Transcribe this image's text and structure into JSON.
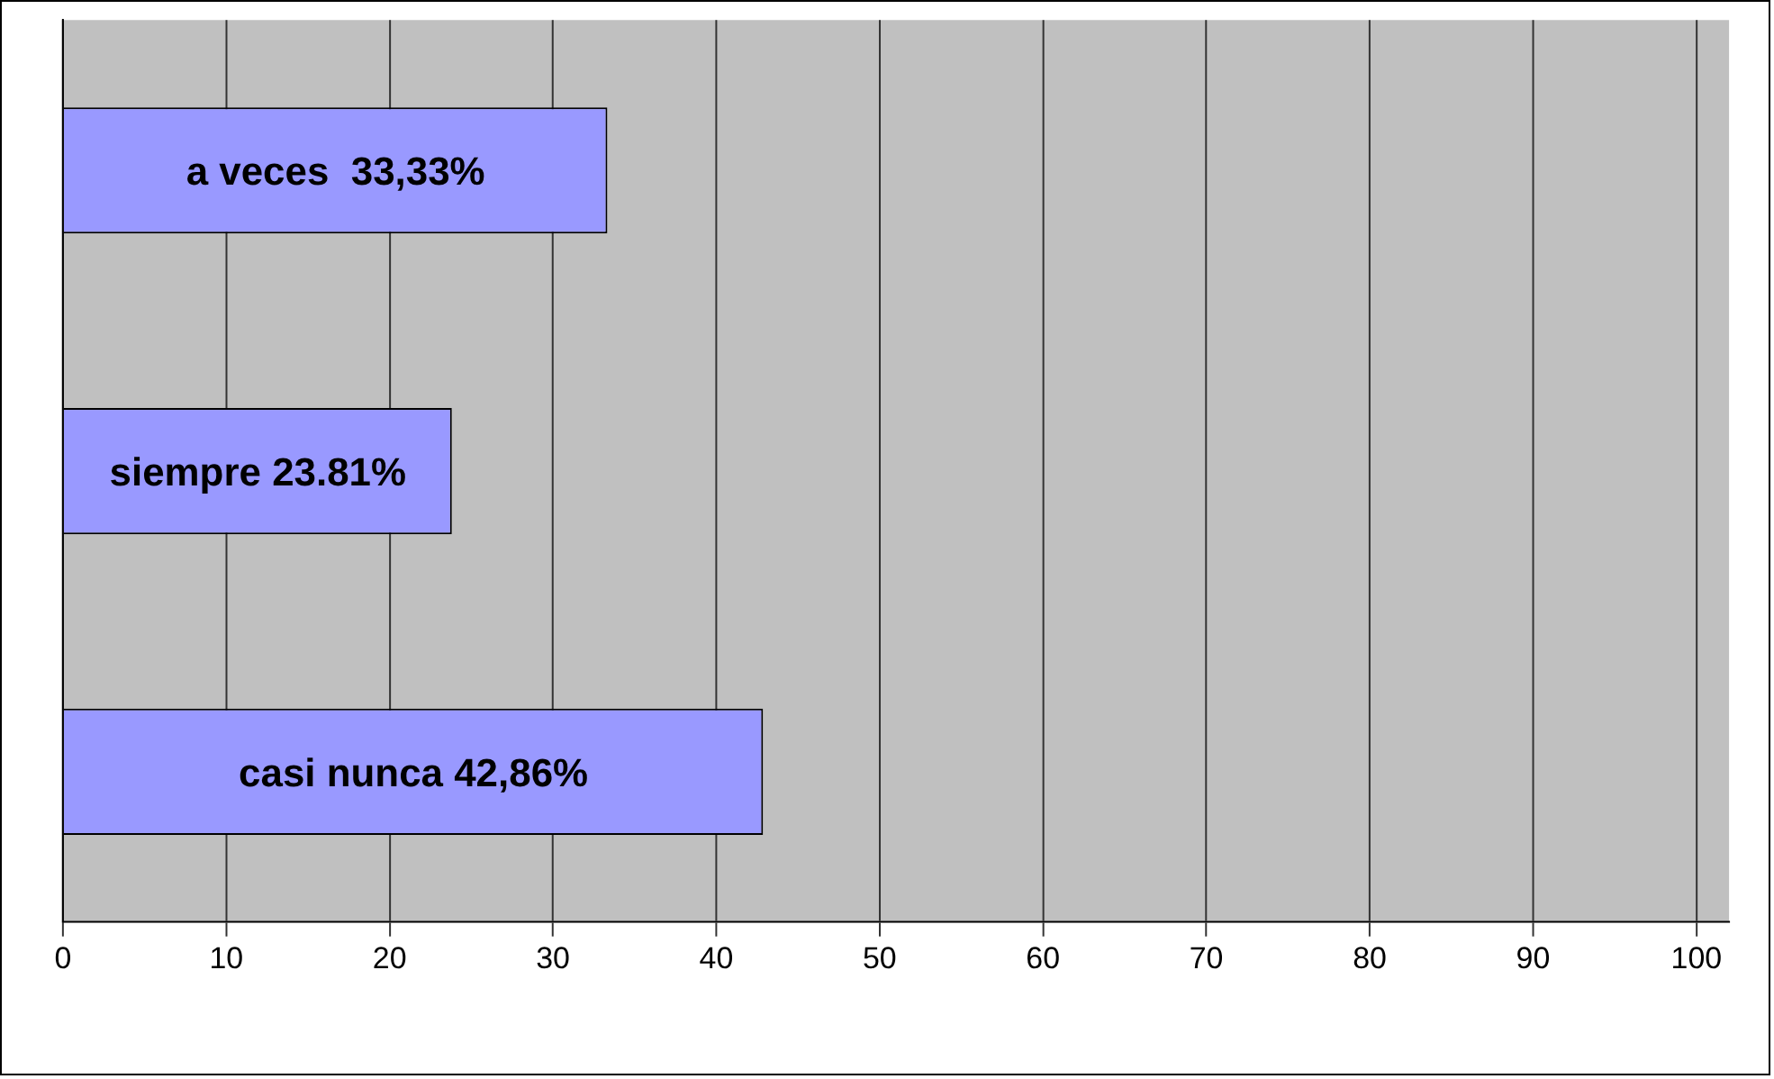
{
  "chart_data": {
    "type": "bar",
    "orientation": "horizontal",
    "categories": [
      null,
      null,
      null
    ],
    "series": [
      {
        "color": "#9999ff",
        "values": [
          33.33,
          23.81,
          42.86
        ],
        "value_labels": [
          "a veces  33,33%",
          "siempre 23.81%",
          "casi nunca 42,86%"
        ]
      }
    ],
    "xlim": [
      0,
      102
    ],
    "xticks": [
      0,
      10,
      20,
      30,
      40,
      50,
      60,
      70,
      80,
      90,
      100
    ],
    "grid": "x",
    "legend": false
  }
}
